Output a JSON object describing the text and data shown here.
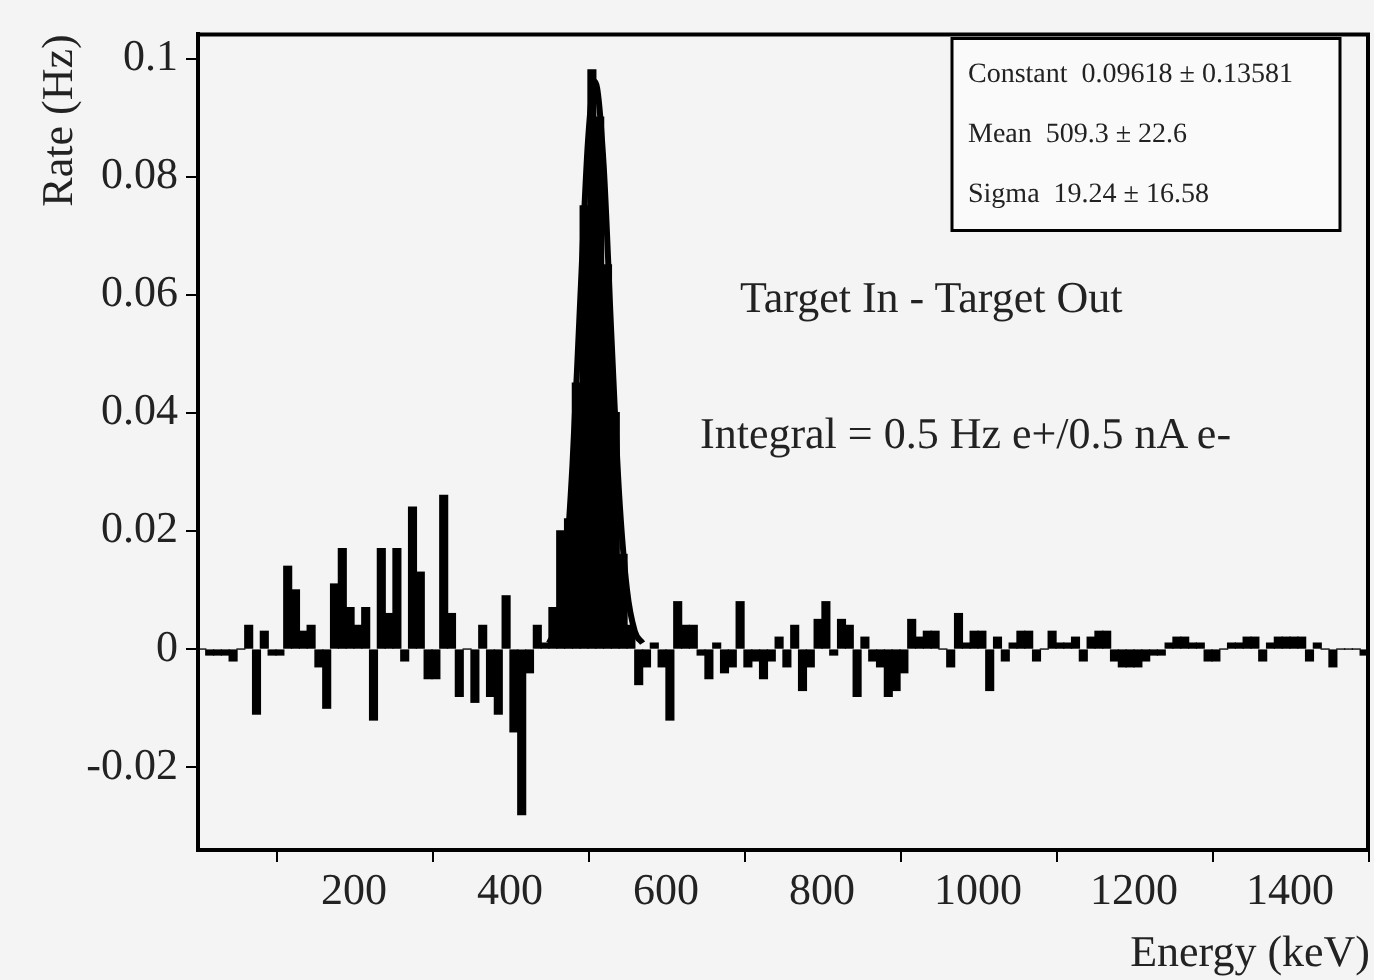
{
  "chart_data": {
    "type": "histogram",
    "xlabel": "Energy (keV)",
    "ylabel": "Rate (Hz)",
    "xlim": [
      0,
      1500
    ],
    "xticks": [
      200,
      400,
      600,
      800,
      1000,
      1200,
      1400
    ],
    "ylim": [
      -0.034,
      0.104
    ],
    "yticks": [
      -0.02,
      0,
      0.02,
      0.04,
      0.06,
      0.08,
      0.1
    ],
    "grid": false,
    "legend": false,
    "annotations": [
      "Constant  0.09618 ± 0.13581",
      "Mean  509.3 ± 22.6",
      "Sigma  19.24 ± 16.58",
      "Target In - Target Out",
      "Integral = 0.5 Hz e+/0.5 nA e-"
    ],
    "series": [
      {
        "color": "#000000",
        "bins": [
          0,
          10,
          20,
          30,
          40,
          50,
          60,
          70,
          80,
          90,
          100,
          110,
          120,
          130,
          140,
          150,
          160,
          170,
          180,
          190,
          200,
          210,
          220,
          230,
          240,
          250,
          260,
          270,
          280,
          290,
          300,
          310,
          320,
          330,
          340,
          350,
          360,
          370,
          380,
          390,
          400,
          410,
          420,
          430,
          440,
          450,
          460,
          470,
          480,
          490,
          500,
          510,
          520,
          530,
          540,
          550,
          560,
          570,
          580,
          590,
          600,
          610,
          620,
          630,
          640,
          650,
          660,
          670,
          680,
          690,
          700,
          710,
          720,
          730,
          740,
          750,
          760,
          770,
          780,
          790,
          800,
          810,
          820,
          830,
          840,
          850,
          860,
          870,
          880,
          890,
          900,
          910,
          920,
          930,
          940,
          950,
          960,
          970,
          980,
          990,
          1000,
          1010,
          1020,
          1030,
          1040,
          1050,
          1060,
          1070,
          1080,
          1090,
          1100,
          1110,
          1120,
          1130,
          1140,
          1150,
          1160,
          1170,
          1180,
          1190,
          1200,
          1210,
          1220,
          1230,
          1240,
          1250,
          1260,
          1270,
          1280,
          1290,
          1300,
          1310,
          1320,
          1330,
          1340,
          1350,
          1360,
          1370,
          1380,
          1390,
          1400,
          1410,
          1420,
          1430,
          1440,
          1450,
          1460,
          1470,
          1480,
          1490,
          1500
        ],
        "values": [
          0,
          -0.001,
          -0.001,
          -0.001,
          -0.002,
          0,
          0.004,
          -0.011,
          0.003,
          -0.001,
          -0.001,
          0.014,
          0.01,
          0.003,
          0.004,
          -0.003,
          -0.01,
          0.011,
          0.017,
          0.007,
          0.004,
          0.007,
          -0.012,
          0.017,
          0.006,
          0.017,
          -0.002,
          0.024,
          0.013,
          -0.005,
          -0.005,
          0.026,
          0.006,
          -0.008,
          0,
          -0.009,
          0.004,
          -0.008,
          -0.011,
          0.009,
          -0.014,
          -0.028,
          -0.004,
          0.004,
          0.001,
          0.007,
          0.02,
          0.022,
          0.045,
          0.075,
          0.098,
          0.09,
          0.065,
          0.04,
          0.016,
          0.004,
          -0.006,
          -0.003,
          0.001,
          -0.003,
          -0.012,
          0.008,
          0.004,
          0.004,
          -0.001,
          -0.005,
          0.001,
          -0.004,
          -0.003,
          0.008,
          -0.003,
          -0.002,
          -0.005,
          -0.002,
          0.002,
          -0.003,
          0.004,
          -0.007,
          -0.003,
          0.005,
          0.008,
          -0.001,
          0.005,
          0.004,
          -0.008,
          0.002,
          -0.002,
          -0.003,
          -0.008,
          -0.007,
          -0.004,
          0.005,
          0.002,
          0.003,
          0.003,
          0,
          -0.003,
          0.006,
          0.001,
          0.003,
          0.003,
          -0.007,
          0.002,
          -0.002,
          0.001,
          0.003,
          0.003,
          -0.002,
          0,
          0.003,
          0.001,
          0.001,
          0.002,
          -0.002,
          0.002,
          0.003,
          0.003,
          -0.002,
          -0.003,
          -0.003,
          -0.003,
          -0.002,
          -0.001,
          -0.001,
          0.001,
          0.002,
          0.002,
          0.001,
          0.001,
          -0.002,
          -0.002,
          0,
          0.001,
          0.001,
          0.002,
          0.002,
          -0.002,
          0.001,
          0.002,
          0.002,
          0.002,
          0.002,
          -0.002,
          0.001,
          0,
          -0.003,
          0,
          0,
          0,
          -0.001
        ]
      },
      {
        "type": "line",
        "color": "#000000",
        "x": [
          450,
          460,
          470,
          480,
          490,
          500,
          509,
          520,
          530,
          540,
          550,
          560,
          570
        ],
        "values": [
          0.001,
          0.004,
          0.012,
          0.031,
          0.059,
          0.086,
          0.096,
          0.082,
          0.053,
          0.026,
          0.01,
          0.003,
          0.001
        ]
      }
    ]
  }
}
